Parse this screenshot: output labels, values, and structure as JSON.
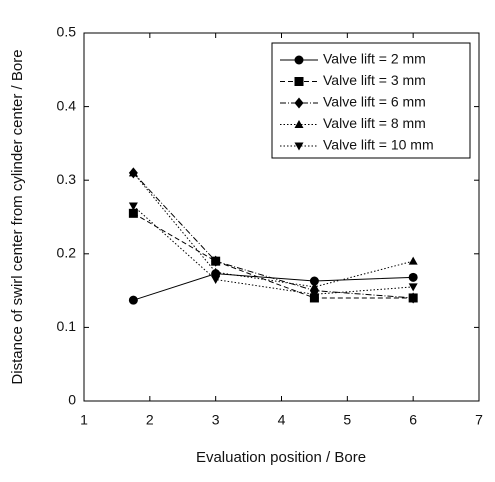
{
  "chart_data": {
    "type": "line",
    "xlabel": "Evaluation position / Bore",
    "ylabel": "Distance of swirl center from cylinder center / Bore",
    "x": [
      1.75,
      3,
      4.5,
      6
    ],
    "series": [
      {
        "name": "Valve lift = 2 mm",
        "color": "#000000",
        "marker": "circle",
        "linestyle": "solid",
        "values": [
          0.137,
          0.173,
          0.163,
          0.168
        ]
      },
      {
        "name": "Valve lift = 3 mm",
        "color": "#000000",
        "marker": "square",
        "linestyle": "dashed",
        "values": [
          0.255,
          0.19,
          0.14,
          0.14
        ]
      },
      {
        "name": "Valve lift = 6 mm",
        "color": "#000000",
        "marker": "diamond",
        "linestyle": "dashdot",
        "values": [
          0.31,
          0.19,
          0.15,
          0.14
        ]
      },
      {
        "name": "Valve lift = 8 mm",
        "color": "#000000",
        "marker": "triangle-up",
        "linestyle": "dotted",
        "values": [
          0.31,
          0.175,
          0.155,
          0.19
        ]
      },
      {
        "name": "Valve lift = 10 mm",
        "color": "#000000",
        "marker": "triangle-down",
        "linestyle": "dotted",
        "values": [
          0.265,
          0.165,
          0.145,
          0.155
        ]
      }
    ],
    "xlim": [
      1,
      7
    ],
    "xticks": [
      1,
      2,
      3,
      4,
      5,
      6,
      7
    ],
    "ylim": [
      0,
      0.5
    ],
    "yticks": [
      0,
      0.1,
      0.2,
      0.3,
      0.4,
      0.5
    ],
    "grid": false,
    "legend": "upper right"
  }
}
